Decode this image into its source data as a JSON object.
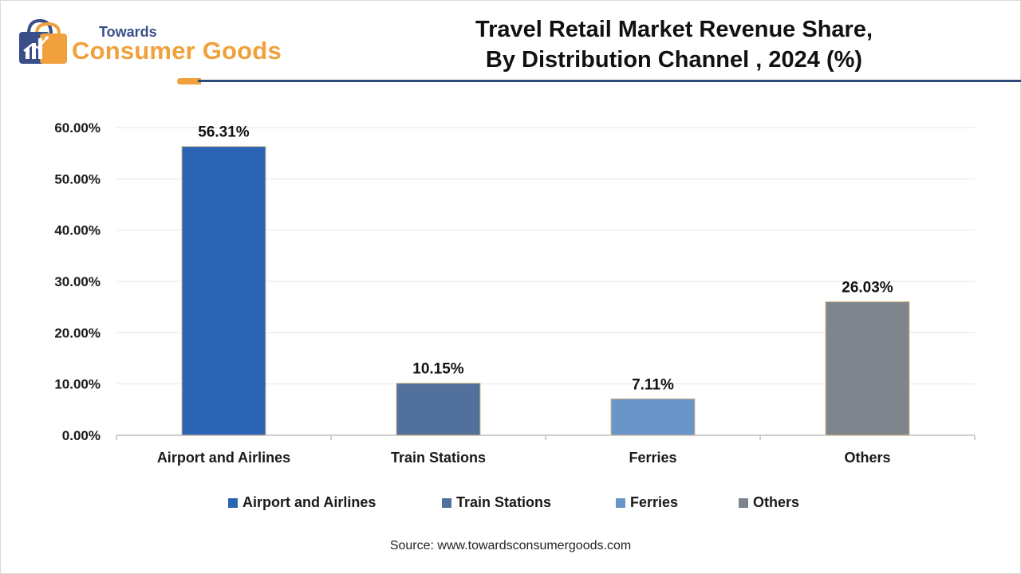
{
  "header": {
    "logo_small": "Towards",
    "logo_main": "Consumer Goods",
    "title_line1": "Travel Retail Market Revenue Share,",
    "title_line2": "By Distribution Channel , 2024 (%)"
  },
  "chart_data": {
    "type": "bar",
    "title": "Travel Retail Market Revenue Share, By Distribution Channel , 2024 (%)",
    "xlabel": "",
    "ylabel": "",
    "categories": [
      "Airport and Airlines",
      "Train Stations",
      "Ferries",
      "Others"
    ],
    "values": [
      56.31,
      10.15,
      7.11,
      26.03
    ],
    "data_labels": [
      "56.31%",
      "10.15%",
      "7.11%",
      "26.03%"
    ],
    "colors": [
      "#2a65b5",
      "#51709c",
      "#6a95c9",
      "#7f858c"
    ],
    "ylim": [
      0,
      60
    ],
    "yticks": [
      0,
      10,
      20,
      30,
      40,
      50,
      60
    ],
    "ytick_labels": [
      "0.00%",
      "10.00%",
      "20.00%",
      "30.00%",
      "40.00%",
      "50.00%",
      "60.00%"
    ],
    "grid": true,
    "legend_position": "bottom"
  },
  "legend": {
    "items": [
      {
        "label": "Airport and Airlines",
        "color": "#2a65b5"
      },
      {
        "label": "Train Stations",
        "color": "#51709c"
      },
      {
        "label": "Ferries",
        "color": "#6a95c9"
      },
      {
        "label": "Others",
        "color": "#7f858c"
      }
    ]
  },
  "footer": {
    "source": "Source: www.towardsconsumergoods.com"
  }
}
